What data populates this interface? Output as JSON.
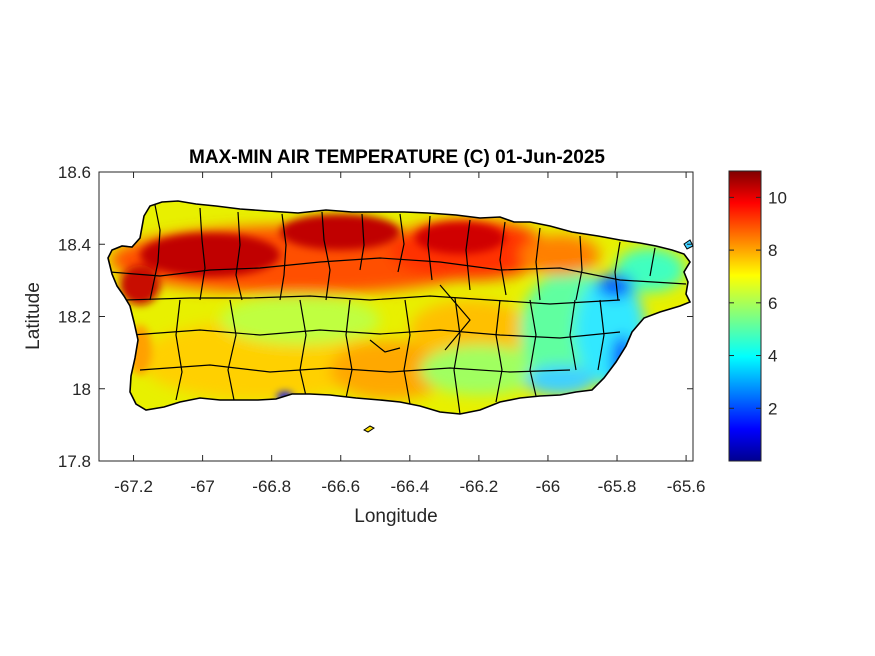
{
  "map": {
    "title": "MAX-MIN AIR TEMPERATURE (C) 01-Jun-2025",
    "xlabel": "Longitude",
    "ylabel": "Latitude",
    "x_ticks": [
      "-67.2",
      "-67",
      "-66.8",
      "-66.6",
      "-66.4",
      "-66.2",
      "-66",
      "-65.8",
      "-65.6"
    ],
    "y_ticks": [
      "18.6",
      "18.4",
      "18.2",
      "18",
      "17.8"
    ],
    "xlim": [
      -67.3,
      -65.58
    ],
    "ylim": [
      17.8,
      18.6
    ],
    "region": "Puerto Rico",
    "colorbar": {
      "colormap": "jet",
      "range": [
        0,
        11
      ],
      "ticks": [
        "2",
        "4",
        "6",
        "8",
        "10"
      ]
    },
    "field_summary": {
      "north_central_max": "10-11",
      "west_coast": "9-10",
      "south_central": "6-8",
      "interior": "6-7",
      "east_coast": "3-5",
      "northeast_min": "2-3"
    },
    "colors": {
      "low": "#00008f",
      "mid": "#80ff80",
      "high": "#800000"
    }
  }
}
